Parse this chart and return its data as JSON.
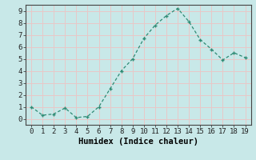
{
  "x": [
    0,
    1,
    2,
    3,
    4,
    5,
    6,
    7,
    8,
    9,
    10,
    11,
    12,
    13,
    14,
    15,
    16,
    17,
    18,
    19
  ],
  "y": [
    1.0,
    0.3,
    0.4,
    0.9,
    0.1,
    0.2,
    1.0,
    2.5,
    4.0,
    5.0,
    6.7,
    7.8,
    8.6,
    9.2,
    8.1,
    6.6,
    5.8,
    4.9,
    5.5,
    5.1
  ],
  "title": "",
  "xlabel": "Humidex (Indice chaleur)",
  "ylabel": "",
  "xlim": [
    -0.5,
    19.5
  ],
  "ylim": [
    -0.5,
    9.5
  ],
  "xticks": [
    0,
    1,
    2,
    3,
    4,
    5,
    6,
    7,
    8,
    9,
    10,
    11,
    12,
    13,
    14,
    15,
    16,
    17,
    18,
    19
  ],
  "yticks": [
    0,
    1,
    2,
    3,
    4,
    5,
    6,
    7,
    8,
    9
  ],
  "line_color": "#2e8b74",
  "marker": "+",
  "bg_color": "#c8e8e8",
  "grid_color": "#e8c8c8",
  "tick_fontsize": 6.5,
  "xlabel_fontsize": 7.5
}
